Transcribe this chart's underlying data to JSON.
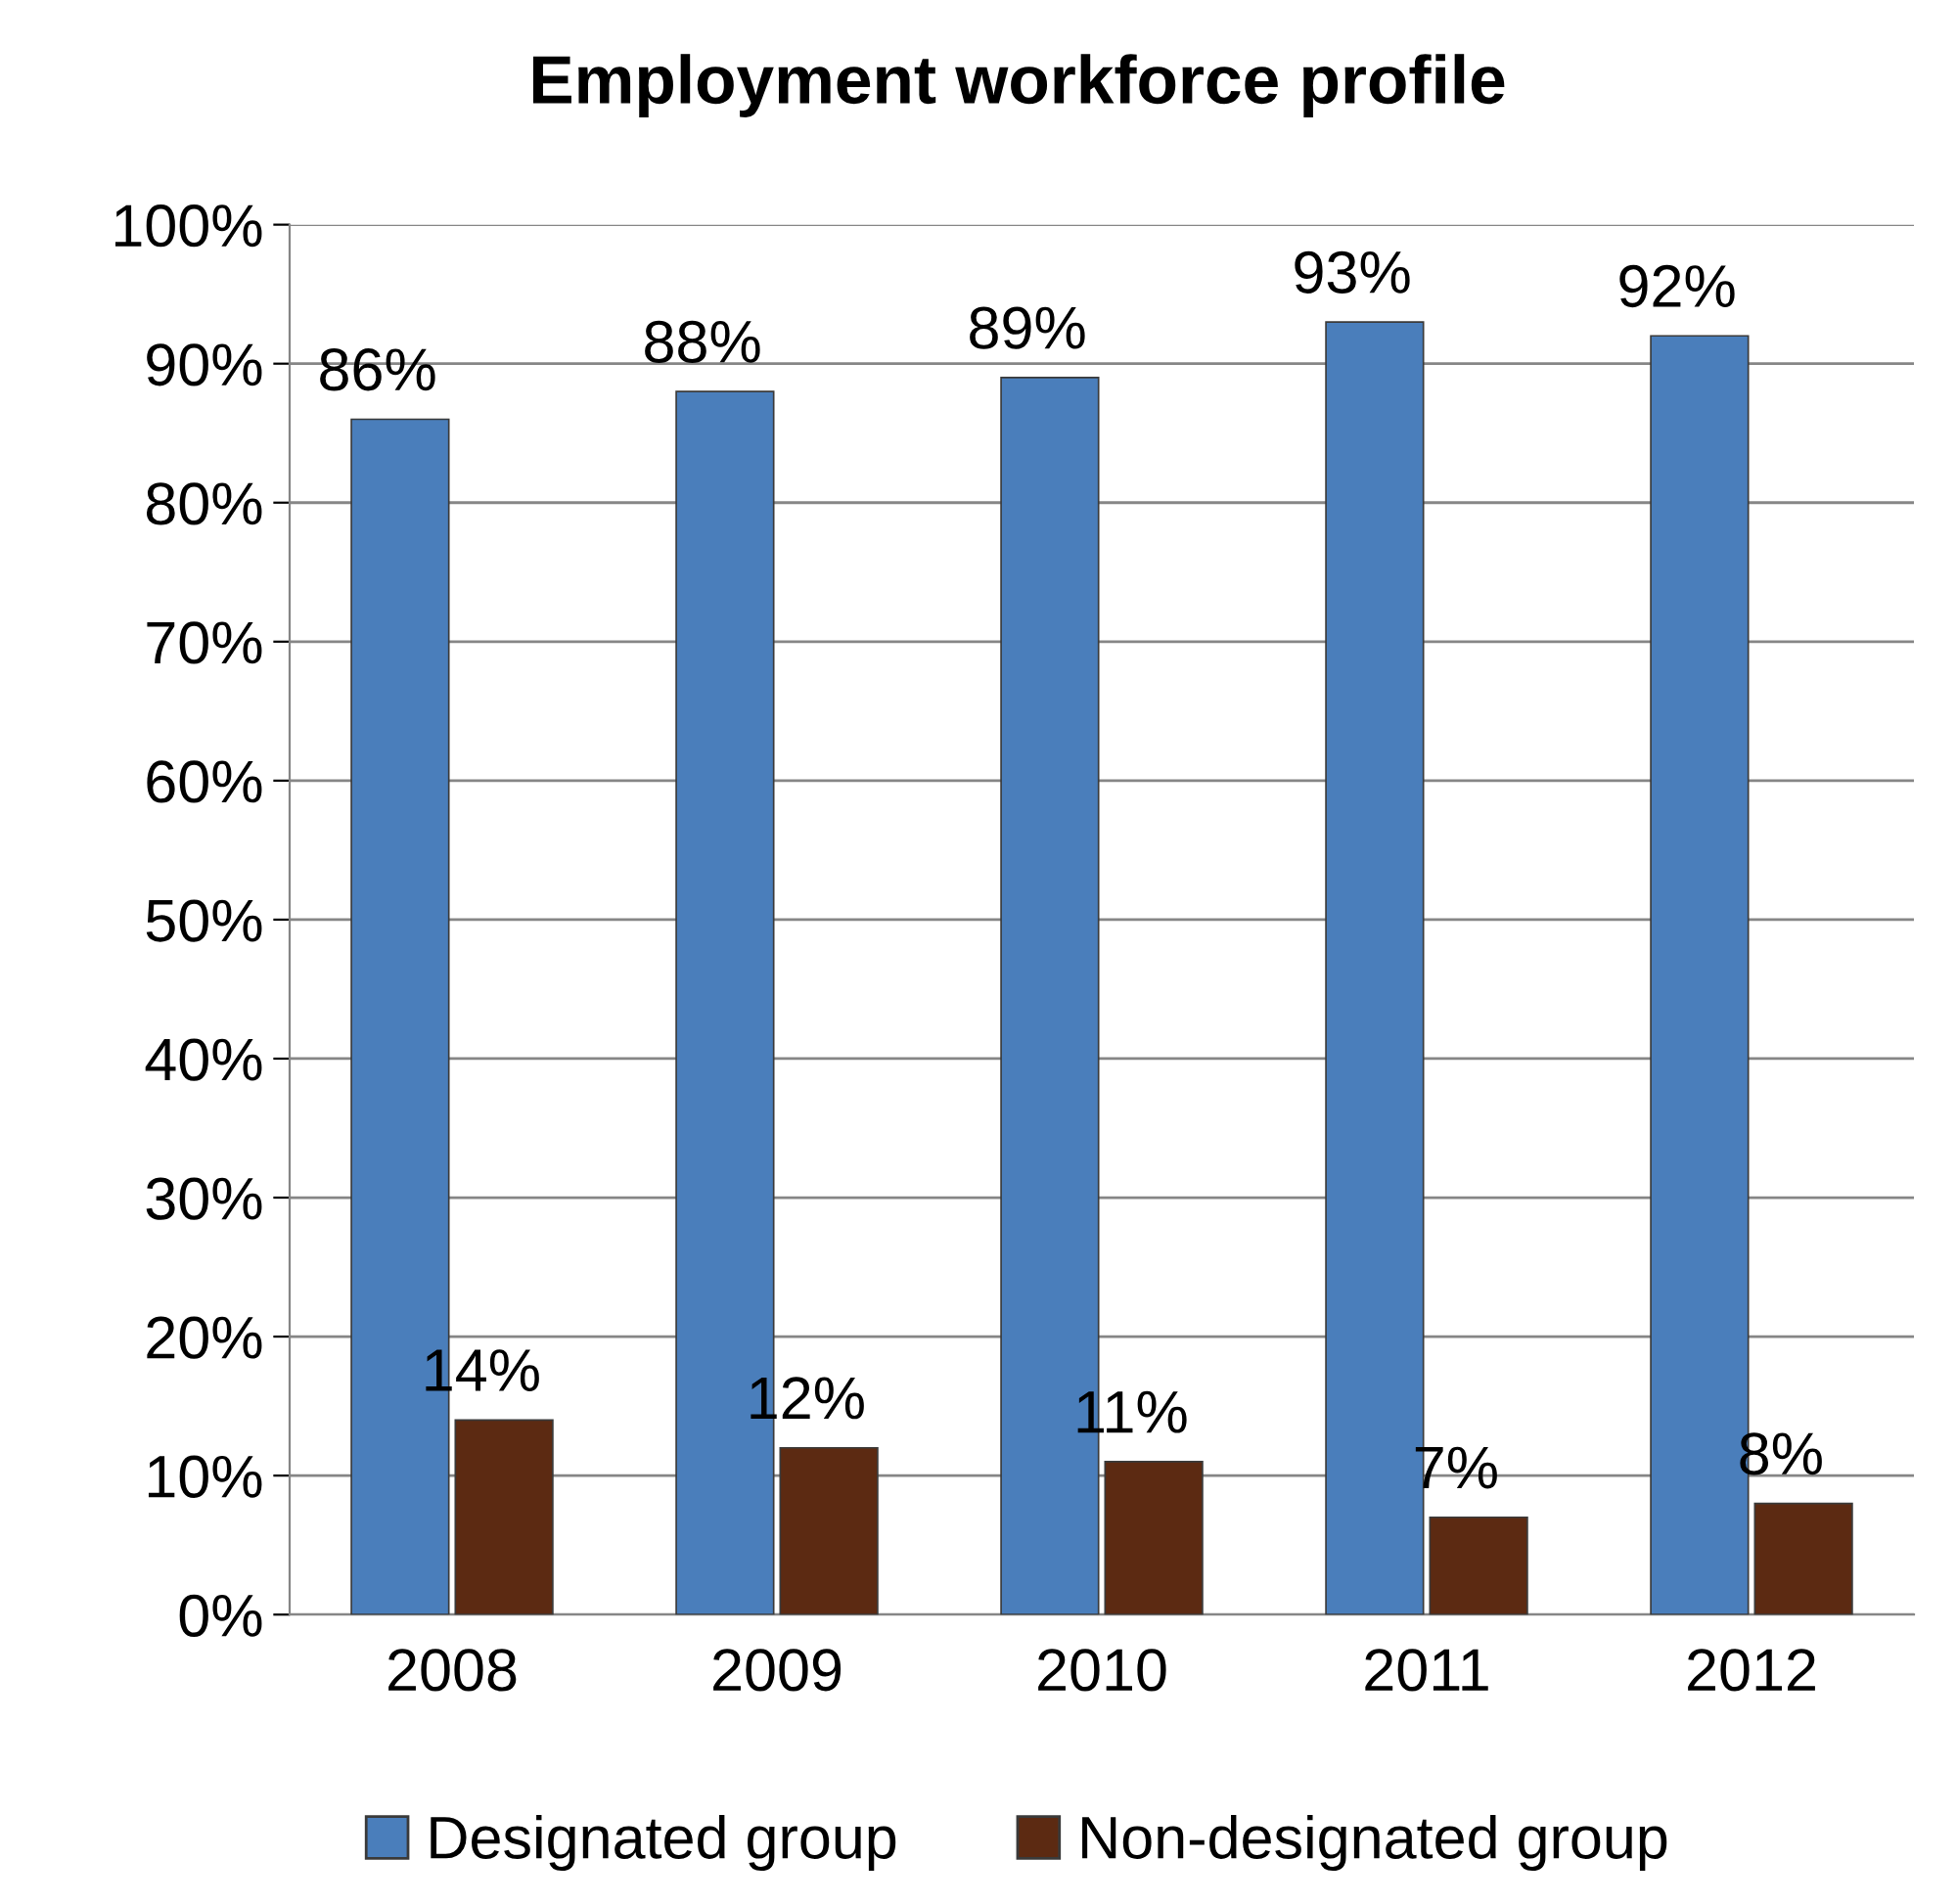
{
  "chart_data": {
    "type": "bar",
    "title": "Employment workforce profile",
    "categories": [
      "2008",
      "2009",
      "2010",
      "2011",
      "2012"
    ],
    "series": [
      {
        "name": "Designated group",
        "color": "#4a7ebb",
        "values": [
          86,
          88,
          89,
          93,
          92
        ],
        "value_labels": [
          "86%",
          "88%",
          "89%",
          "93%",
          "92%"
        ]
      },
      {
        "name": "Non-designated group",
        "color": "#5c2a12",
        "values": [
          14,
          12,
          11,
          7,
          8
        ],
        "value_labels": [
          "14%",
          "12%",
          "11%",
          "7%",
          "8%"
        ]
      }
    ],
    "ylim": [
      0,
      100
    ],
    "yticks": [
      {
        "value": 0,
        "label": "0%"
      },
      {
        "value": 10,
        "label": "10%"
      },
      {
        "value": 20,
        "label": "20%"
      },
      {
        "value": 30,
        "label": "30%"
      },
      {
        "value": 40,
        "label": "40%"
      },
      {
        "value": 50,
        "label": "50%"
      },
      {
        "value": 60,
        "label": "60%"
      },
      {
        "value": 70,
        "label": "70%"
      },
      {
        "value": 80,
        "label": "80%"
      },
      {
        "value": 90,
        "label": "90%"
      },
      {
        "value": 100,
        "label": "100%"
      }
    ],
    "grid": "y",
    "legend": "bottom"
  }
}
